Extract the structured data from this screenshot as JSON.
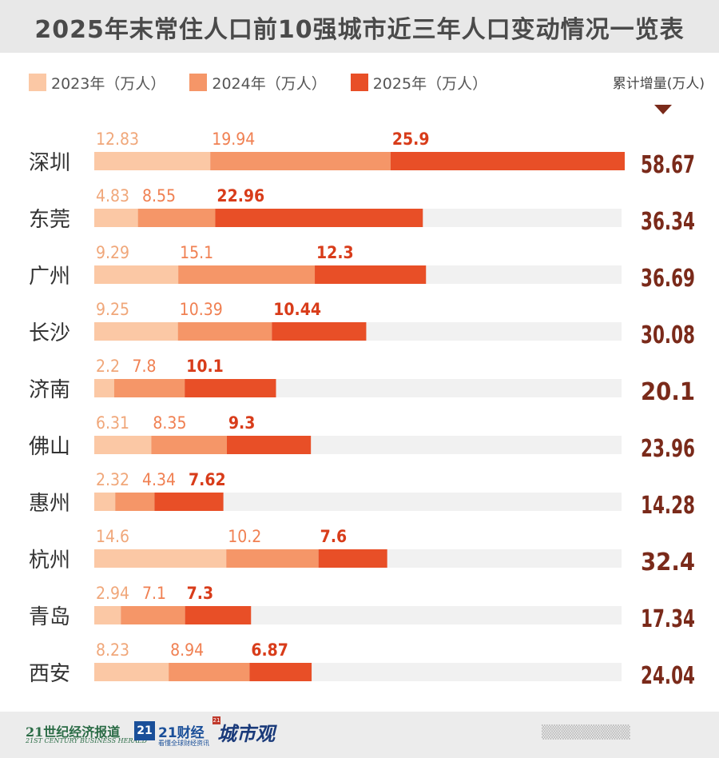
{
  "title": "2025年末常住人口前10强城市近三年人口变动情况一览表",
  "legend": {
    "items": [
      {
        "label": "2023年（万人）",
        "color": "#fbc8a5"
      },
      {
        "label": "2024年（万人）",
        "color": "#f59668"
      },
      {
        "label": "2025年（万人）",
        "color": "#e84f27"
      }
    ],
    "total_header": "累计增量(万人)"
  },
  "colors": {
    "y2023": "#fbc8a5",
    "y2024": "#f59668",
    "y2025": "#e84f27",
    "label2023": "#f0a77a",
    "label2024": "#f08052",
    "label2025": "#d83c1a",
    "total": "#7a2a1a",
    "track": "#f1f1f1",
    "city": "#333333"
  },
  "chart_data": {
    "type": "bar",
    "stacked": true,
    "orientation": "horizontal",
    "categories": [
      "深圳",
      "东莞",
      "广州",
      "长沙",
      "济南",
      "佛山",
      "惠州",
      "杭州",
      "青岛",
      "西安"
    ],
    "series": [
      {
        "name": "2023年（万人）",
        "values": [
          12.83,
          4.83,
          9.29,
          9.25,
          2.2,
          6.31,
          2.32,
          14.6,
          2.94,
          8.23
        ]
      },
      {
        "name": "2024年（万人）",
        "values": [
          19.94,
          8.55,
          15.1,
          10.39,
          7.8,
          8.35,
          4.34,
          10.2,
          7.1,
          8.94
        ]
      },
      {
        "name": "2025年（万人）",
        "values": [
          25.9,
          22.96,
          12.3,
          10.44,
          10.1,
          9.3,
          7.62,
          7.6,
          7.3,
          6.87
        ]
      }
    ],
    "value_labels": [
      [
        "12.83",
        "19.94",
        "25.9"
      ],
      [
        "4.83",
        "8.55",
        "22.96"
      ],
      [
        "9.29",
        "15.1",
        "12.3"
      ],
      [
        "9.25",
        "10.39",
        "10.44"
      ],
      [
        "2.2",
        "7.8",
        "10.1"
      ],
      [
        "6.31",
        "8.35",
        "9.3"
      ],
      [
        "2.32",
        "4.34",
        "7.62"
      ],
      [
        "14.6",
        "10.2",
        "7.6"
      ],
      [
        "2.94",
        "7.1",
        "7.3"
      ],
      [
        "8.23",
        "8.94",
        "6.87"
      ]
    ],
    "totals": [
      "58.67",
      "36.34",
      "36.69",
      "30.08",
      "20.1",
      "23.96",
      "14.28",
      "32.4",
      "17.34",
      "24.04"
    ],
    "xlim": [
      0,
      58.67
    ]
  },
  "footer": {
    "logo1": "21世纪经济报道",
    "logo1_sub": "21ST CENTURY BUSINESS HERALD",
    "badge": "21",
    "logo2": "21财经",
    "logo2_sub": "看懂全球财经资讯",
    "logo3": "城市观",
    "logo3_mark": "21",
    "watermark": "▒▒▒▒▒▒▒▒▒"
  }
}
